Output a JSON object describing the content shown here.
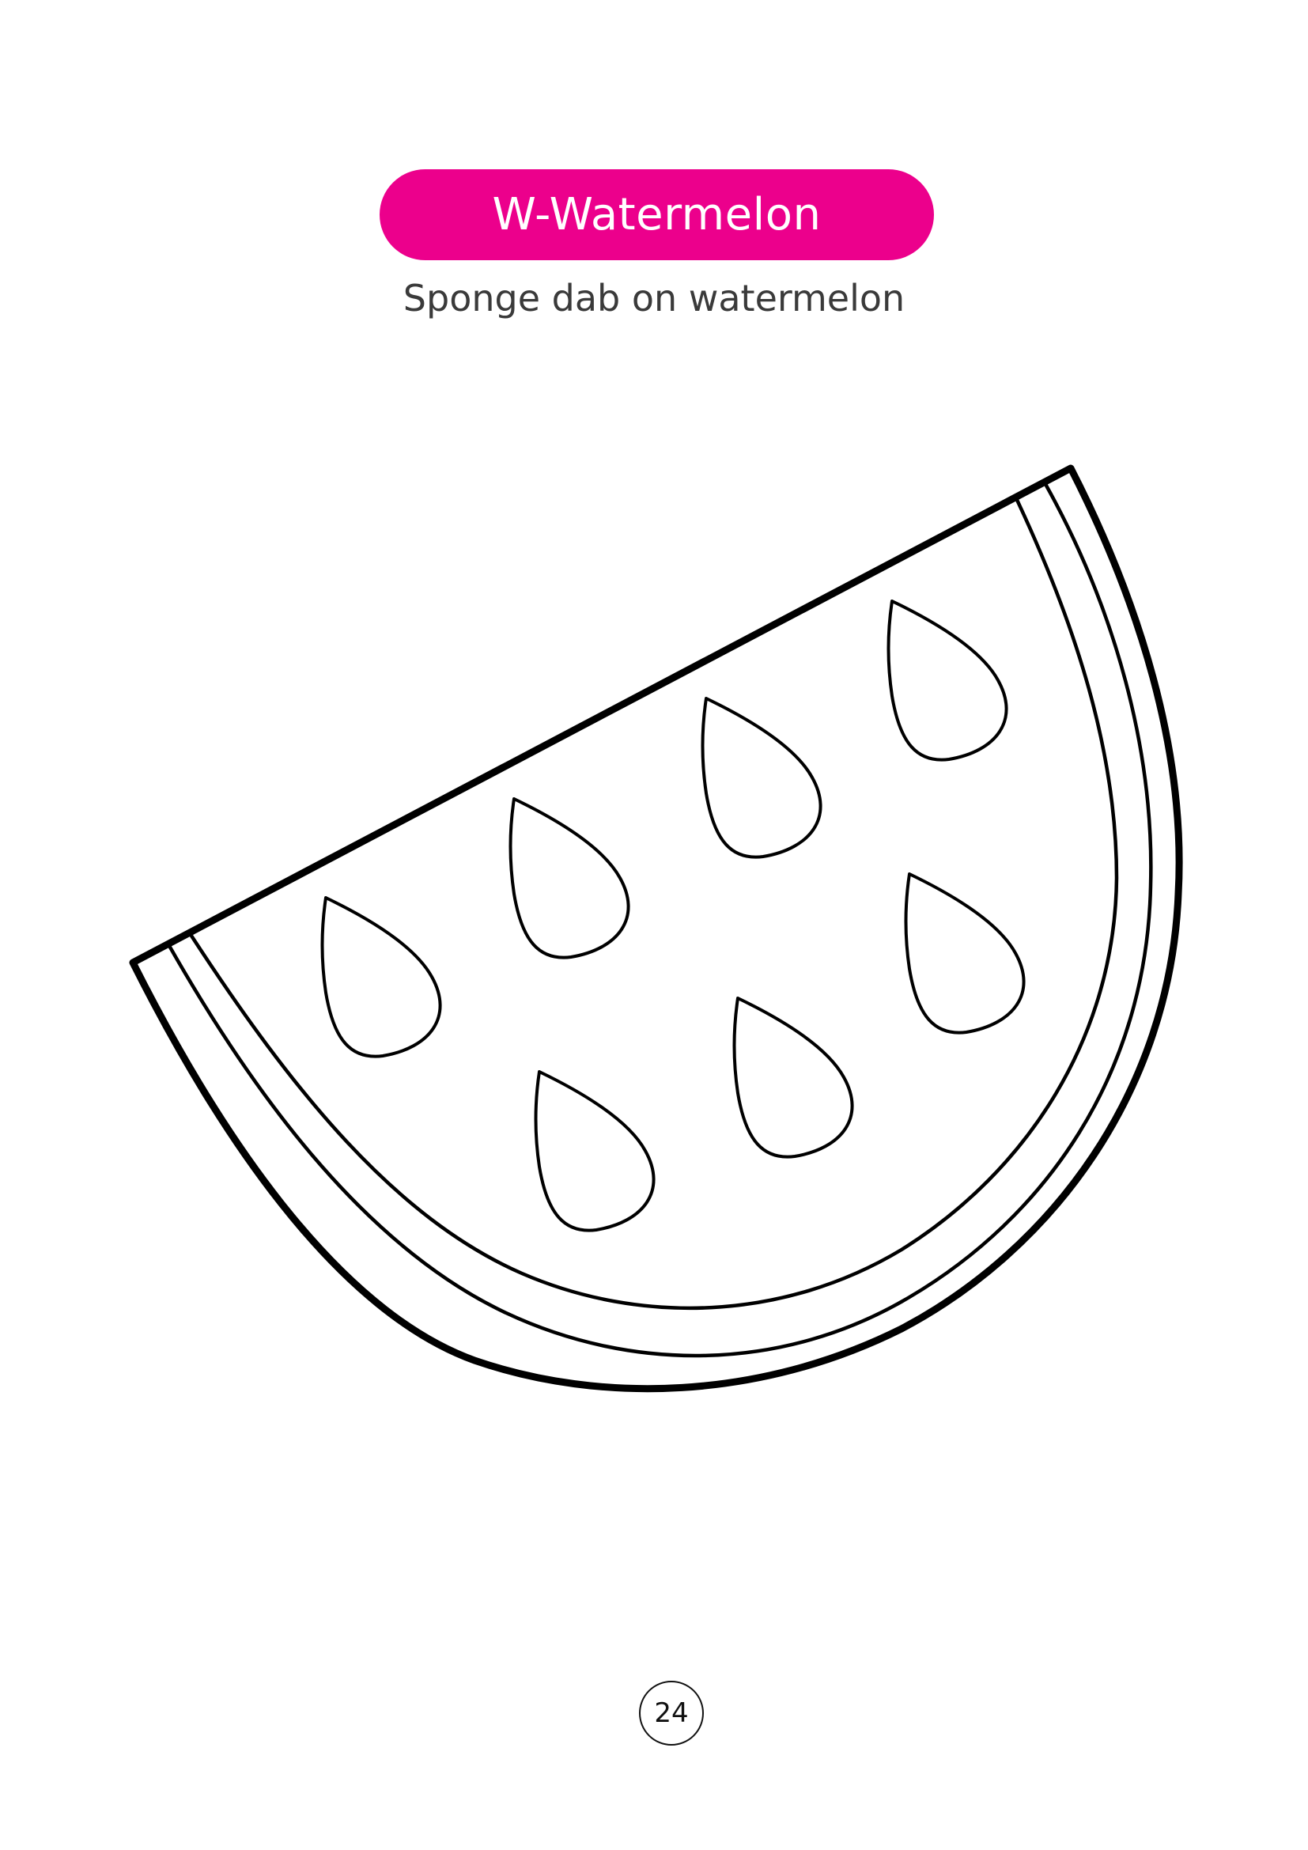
{
  "header": {
    "title": "W-Watermelon",
    "instruction": "Sponge dab on watermelon"
  },
  "illustration": {
    "subject": "watermelon slice outline",
    "seed_count": 7
  },
  "footer": {
    "page_number": "24"
  },
  "colors": {
    "accent": "#ec008c",
    "line": "#000000",
    "background": "#ffffff"
  }
}
